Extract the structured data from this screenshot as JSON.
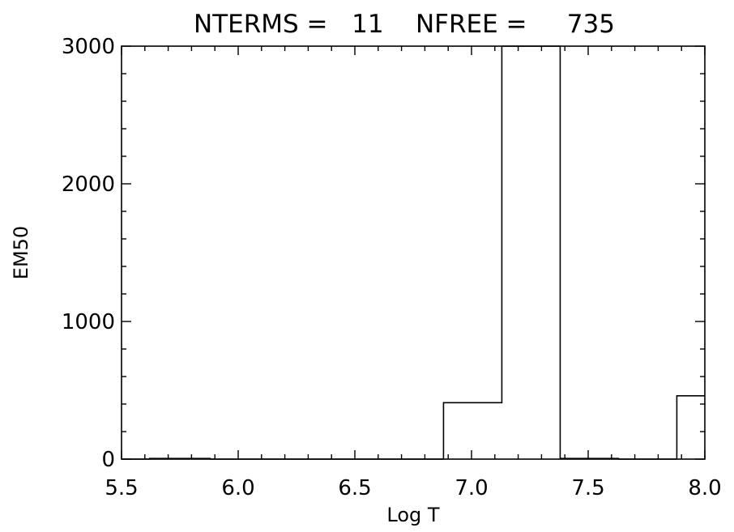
{
  "chart_data": {
    "type": "bar",
    "title": "NTERMS =   11    NFREE =     735",
    "xlabel": "Log T",
    "ylabel": "EM50",
    "xlim": [
      5.5,
      8.0
    ],
    "ylim": [
      0,
      3000
    ],
    "x_ticks": [
      "5.5",
      "6.0",
      "6.5",
      "7.0",
      "7.5",
      "8.0"
    ],
    "y_ticks": [
      "0",
      "1000",
      "2000",
      "3000"
    ],
    "grid": false,
    "legend": "none",
    "bins": [
      {
        "x0": 5.5,
        "x1": 5.62,
        "value": 0
      },
      {
        "x0": 5.62,
        "x1": 5.88,
        "value": 5
      },
      {
        "x0": 5.88,
        "x1": 6.38,
        "value": 0
      },
      {
        "x0": 6.38,
        "x1": 6.88,
        "value": 0
      },
      {
        "x0": 6.88,
        "x1": 7.13,
        "value": 410
      },
      {
        "x0": 7.13,
        "x1": 7.38,
        "value": 3000
      },
      {
        "x0": 7.38,
        "x1": 7.63,
        "value": 5
      },
      {
        "x0": 7.63,
        "x1": 7.88,
        "value": 0
      },
      {
        "x0": 7.88,
        "x1": 8.0,
        "value": 460
      }
    ]
  }
}
